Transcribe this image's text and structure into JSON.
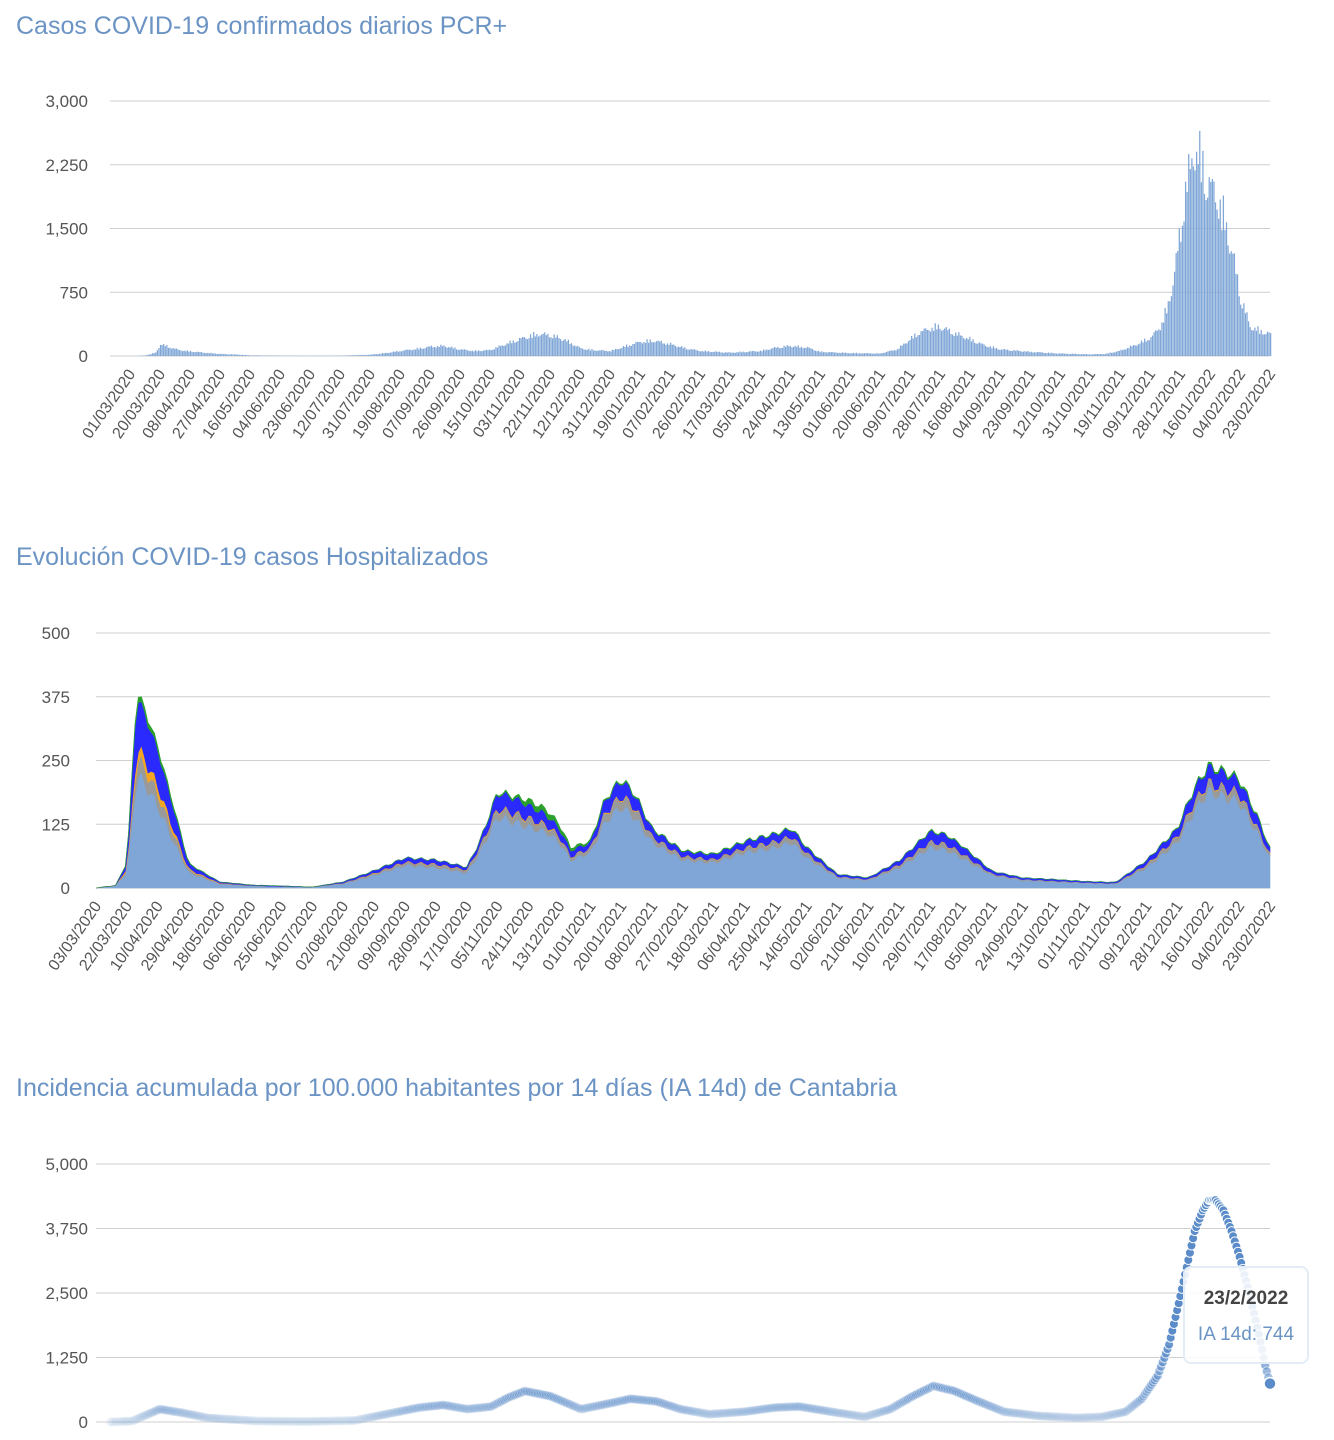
{
  "chart_data": [
    {
      "type": "bar",
      "title": "Casos COVID-19 confirmados diarios PCR+",
      "ylim": [
        0,
        3000
      ],
      "yticks": [
        "3,000",
        "2,250",
        "1,500",
        "750",
        "0"
      ],
      "ytick_values": [
        3000,
        2250,
        1500,
        750,
        0
      ],
      "grid": true,
      "color": "#7fa6d6",
      "xtick_labels": [
        "01/03/2020",
        "20/03/2020",
        "08/04/2020",
        "27/04/2020",
        "16/05/2020",
        "04/06/2020",
        "23/06/2020",
        "12/07/2020",
        "31/07/2020",
        "19/08/2020",
        "07/09/2020",
        "26/09/2020",
        "15/10/2020",
        "03/11/2020",
        "22/11/2020",
        "12/12/2020",
        "31/12/2020",
        "19/01/2021",
        "07/02/2021",
        "26/02/2021",
        "17/03/2021",
        "05/04/2021",
        "24/04/2021",
        "13/05/2021",
        "01/06/2021",
        "20/06/2021",
        "09/07/2021",
        "28/07/2021",
        "16/08/2021",
        "04/09/2021",
        "23/09/2021",
        "12/10/2021",
        "31/10/2021",
        "19/11/2021",
        "09/12/2021",
        "28/12/2021",
        "16/01/2022",
        "04/02/2022",
        "23/02/2022"
      ],
      "x": [
        "01/03/2020",
        "10/03/2020",
        "17/03/2020",
        "20/03/2020",
        "25/03/2020",
        "01/04/2020",
        "08/04/2020",
        "20/04/2020",
        "27/04/2020",
        "10/05/2020",
        "16/05/2020",
        "04/06/2020",
        "23/06/2020",
        "12/07/2020",
        "31/07/2020",
        "10/08/2020",
        "19/08/2020",
        "01/09/2020",
        "07/09/2020",
        "16/09/2020",
        "26/09/2020",
        "05/10/2020",
        "15/10/2020",
        "25/10/2020",
        "03/11/2020",
        "10/11/2020",
        "15/11/2020",
        "22/11/2020",
        "01/12/2020",
        "12/12/2020",
        "20/12/2020",
        "31/12/2020",
        "10/01/2021",
        "19/01/2021",
        "28/01/2021",
        "07/02/2021",
        "17/02/2021",
        "26/02/2021",
        "17/03/2021",
        "05/04/2021",
        "15/04/2021",
        "24/04/2021",
        "05/05/2021",
        "13/05/2021",
        "01/06/2021",
        "20/06/2021",
        "01/07/2021",
        "09/07/2021",
        "15/07/2021",
        "22/07/2021",
        "28/07/2021",
        "05/08/2021",
        "16/08/2021",
        "25/08/2021",
        "04/09/2021",
        "23/09/2021",
        "12/10/2021",
        "31/10/2021",
        "10/11/2021",
        "19/11/2021",
        "29/11/2021",
        "09/12/2021",
        "15/12/2021",
        "20/12/2021",
        "24/12/2021",
        "28/12/2021",
        "31/12/2021",
        "03/01/2022",
        "06/01/2022",
        "10/01/2022",
        "13/01/2022",
        "16/01/2022",
        "20/01/2022",
        "25/01/2022",
        "30/01/2022",
        "04/02/2022",
        "10/02/2022",
        "16/02/2022",
        "23/02/2022"
      ],
      "values": [
        0,
        5,
        40,
        140,
        110,
        70,
        55,
        35,
        25,
        15,
        8,
        4,
        3,
        4,
        15,
        35,
        60,
        90,
        110,
        120,
        80,
        60,
        70,
        140,
        200,
        240,
        260,
        250,
        200,
        90,
        70,
        60,
        120,
        170,
        180,
        140,
        90,
        60,
        40,
        60,
        100,
        120,
        100,
        50,
        35,
        30,
        80,
        200,
        280,
        330,
        350,
        280,
        200,
        130,
        80,
        50,
        30,
        20,
        25,
        60,
        130,
        220,
        350,
        600,
        1000,
        1500,
        2000,
        2200,
        2500,
        2300,
        2100,
        2000,
        1900,
        1600,
        1200,
        700,
        350,
        300,
        260
      ]
    },
    {
      "type": "area",
      "title": "Evolución COVID-19 casos  Hospitalizados",
      "ylim": [
        0,
        500
      ],
      "yticks": [
        "500",
        "375",
        "250",
        "125",
        "0"
      ],
      "ytick_values": [
        500,
        375,
        250,
        125,
        0
      ],
      "grid": true,
      "xtick_labels": [
        "03/03/2020",
        "22/03/2020",
        "10/04/2020",
        "29/04/2020",
        "18/05/2020",
        "06/06/2020",
        "25/06/2020",
        "14/07/2020",
        "02/08/2020",
        "21/08/2020",
        "09/09/2020",
        "28/09/2020",
        "17/10/2020",
        "05/11/2020",
        "24/11/2020",
        "13/12/2020",
        "01/01/2021",
        "20/01/2021",
        "08/02/2021",
        "27/02/2021",
        "18/03/2021",
        "06/04/2021",
        "25/04/2021",
        "14/05/2021",
        "02/06/2021",
        "21/06/2021",
        "10/07/2021",
        "29/07/2021",
        "17/08/2021",
        "05/09/2021",
        "24/09/2021",
        "13/10/2021",
        "01/11/2021",
        "20/11/2021",
        "09/12/2021",
        "28/12/2021",
        "16/01/2022",
        "04/02/2022",
        "23/02/2022"
      ],
      "x": [
        "03/03/2020",
        "15/03/2020",
        "22/03/2020",
        "28/03/2020",
        "01/04/2020",
        "10/04/2020",
        "20/04/2020",
        "29/04/2020",
        "18/05/2020",
        "06/06/2020",
        "25/06/2020",
        "14/07/2020",
        "02/08/2020",
        "21/08/2020",
        "09/09/2020",
        "28/09/2020",
        "17/10/2020",
        "25/10/2020",
        "05/11/2020",
        "15/11/2020",
        "24/11/2020",
        "05/12/2020",
        "13/12/2020",
        "20/12/2020",
        "01/01/2021",
        "10/01/2021",
        "20/01/2021",
        "28/01/2021",
        "08/02/2021",
        "27/02/2021",
        "18/03/2021",
        "06/04/2021",
        "25/04/2021",
        "05/05/2021",
        "14/05/2021",
        "02/06/2021",
        "21/06/2021",
        "10/07/2021",
        "29/07/2021",
        "08/08/2021",
        "17/08/2021",
        "05/09/2021",
        "24/09/2021",
        "13/10/2021",
        "01/11/2021",
        "20/11/2021",
        "09/12/2021",
        "28/12/2021",
        "07/01/2022",
        "16/01/2022",
        "25/01/2022",
        "04/02/2022",
        "15/02/2022",
        "23/02/2022"
      ],
      "series": [
        {
          "color": "#7fa6d6",
          "values": [
            0,
            5,
            30,
            220,
            210,
            160,
            90,
            30,
            8,
            4,
            3,
            2,
            8,
            25,
            45,
            40,
            30,
            70,
            140,
            130,
            120,
            110,
            90,
            55,
            70,
            130,
            160,
            140,
            90,
            55,
            50,
            70,
            80,
            90,
            60,
            20,
            15,
            40,
            80,
            75,
            60,
            25,
            15,
            12,
            10,
            8,
            40,
            90,
            150,
            190,
            180,
            170,
            110,
            60
          ]
        },
        {
          "color": "#9a9a9a",
          "values": [
            0,
            0,
            5,
            35,
            30,
            25,
            15,
            5,
            1,
            1,
            0,
            0,
            2,
            3,
            5,
            6,
            5,
            10,
            15,
            15,
            15,
            12,
            10,
            6,
            8,
            15,
            20,
            18,
            10,
            6,
            5,
            8,
            10,
            10,
            8,
            3,
            2,
            5,
            10,
            10,
            8,
            3,
            2,
            2,
            1,
            1,
            5,
            10,
            15,
            15,
            15,
            15,
            10,
            6
          ]
        },
        {
          "color": "#f5a623",
          "values": [
            0,
            0,
            4,
            20,
            20,
            15,
            8,
            2,
            1,
            0,
            0,
            0,
            0,
            1,
            1,
            1,
            1,
            1,
            2,
            2,
            2,
            2,
            2,
            1,
            1,
            2,
            2,
            2,
            1,
            1,
            1,
            1,
            1,
            1,
            1,
            0,
            0,
            1,
            1,
            1,
            1,
            0,
            0,
            0,
            0,
            0,
            1,
            1,
            2,
            2,
            2,
            2,
            1,
            1
          ]
        },
        {
          "color": "#2a2aff",
          "values": [
            0,
            0,
            10,
            100,
            90,
            70,
            40,
            10,
            2,
            1,
            1,
            0,
            2,
            5,
            8,
            8,
            5,
            10,
            30,
            30,
            25,
            20,
            15,
            12,
            10,
            25,
            30,
            25,
            15,
            10,
            10,
            12,
            15,
            15,
            10,
            4,
            3,
            8,
            20,
            18,
            15,
            5,
            3,
            3,
            2,
            2,
            8,
            15,
            25,
            30,
            30,
            25,
            20,
            10
          ]
        },
        {
          "color": "#2ca02c",
          "values": [
            0,
            0,
            1,
            10,
            10,
            8,
            5,
            1,
            0,
            0,
            0,
            0,
            0,
            0,
            0,
            0,
            0,
            0,
            2,
            3,
            10,
            10,
            8,
            5,
            3,
            2,
            2,
            2,
            1,
            1,
            1,
            1,
            1,
            1,
            1,
            0,
            0,
            0,
            1,
            1,
            1,
            0,
            0,
            0,
            0,
            0,
            0,
            1,
            2,
            3,
            3,
            3,
            2,
            1
          ]
        }
      ]
    },
    {
      "type": "scatter",
      "title": "Incidencia acumulada por 100.000 habitantes por 14 días (IA 14d) de Cantabria",
      "ylim": [
        0,
        5000
      ],
      "yticks": [
        "5,000",
        "3,750",
        "2,500",
        "1,250",
        "0"
      ],
      "ytick_values": [
        5000,
        3750,
        2500,
        1250,
        0
      ],
      "grid": true,
      "color": "#5b8cc9",
      "xlim": [
        "01/03/2020",
        "23/02/2022"
      ],
      "x": [
        "01/03/2020",
        "15/03/2020",
        "01/04/2020",
        "15/04/2020",
        "01/05/2020",
        "01/06/2020",
        "01/07/2020",
        "01/08/2020",
        "20/08/2020",
        "10/09/2020",
        "25/09/2020",
        "10/10/2020",
        "25/10/2020",
        "05/11/2020",
        "15/11/2020",
        "01/12/2020",
        "20/12/2020",
        "05/01/2021",
        "20/01/2021",
        "05/02/2021",
        "20/02/2021",
        "10/03/2021",
        "01/04/2021",
        "20/04/2021",
        "05/05/2021",
        "25/05/2021",
        "15/06/2021",
        "01/07/2021",
        "15/07/2021",
        "28/07/2021",
        "10/08/2021",
        "25/08/2021",
        "10/09/2021",
        "01/10/2021",
        "25/10/2021",
        "10/11/2021",
        "25/11/2021",
        "05/12/2021",
        "15/12/2021",
        "22/12/2021",
        "28/12/2021",
        "02/01/2022",
        "07/01/2022",
        "12/01/2022",
        "16/01/2022",
        "20/01/2022",
        "25/01/2022",
        "30/01/2022",
        "04/02/2022",
        "10/02/2022",
        "16/02/2022",
        "20/02/2022",
        "23/02/2022"
      ],
      "values": [
        0,
        20,
        250,
        180,
        80,
        20,
        10,
        30,
        150,
        280,
        330,
        250,
        300,
        480,
        600,
        500,
        250,
        350,
        450,
        400,
        250,
        150,
        200,
        280,
        300,
        200,
        100,
        250,
        500,
        700,
        600,
        400,
        200,
        120,
        80,
        100,
        200,
        450,
        900,
        1500,
        2300,
        3000,
        3700,
        4100,
        4300,
        4300,
        4100,
        3700,
        3200,
        2500,
        1700,
        1100,
        744
      ]
    }
  ],
  "tooltip": {
    "date": "23/2/2022",
    "label": "IA 14d: 744"
  }
}
